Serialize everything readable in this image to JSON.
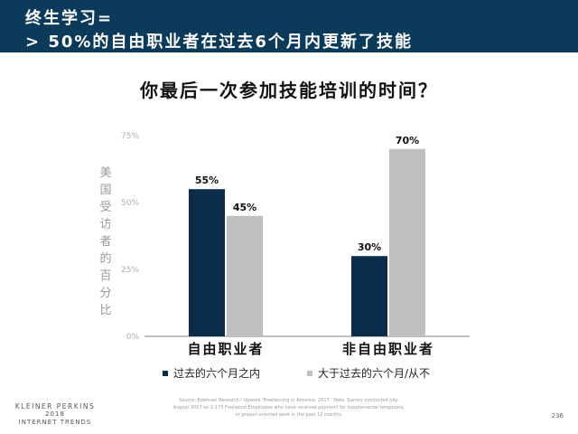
{
  "header": {
    "line1": "终生学习=",
    "line2": ">  50%的自由职业者在过去6个月内更新了技能"
  },
  "chart_data": {
    "type": "bar",
    "title": "你最后一次参加技能培训的时间？",
    "ylabel": "美国受访者的百分比",
    "xlabel": "",
    "categories": [
      "自由职业者",
      "非自由职业者"
    ],
    "series": [
      {
        "name": "过去的六个月之内",
        "values": [
          55,
          30
        ],
        "color": "#0b2d4a"
      },
      {
        "name": "大于过去的六个月/从不",
        "values": [
          45,
          70
        ],
        "color": "#bfbfbf"
      }
    ],
    "value_suffix": "%",
    "ylim": [
      0,
      75
    ],
    "yticks": [
      "0%",
      "25%",
      "50%",
      "75%"
    ],
    "ytick_values": [
      0,
      25,
      50,
      75
    ],
    "grid": false,
    "legend_position": "bottom"
  },
  "footer": {
    "logo_line1": "KLEINER PERKINS",
    "logo_line2": "2018",
    "logo_line3": "INTERNET TRENDS",
    "source": "Source: Edelman Research / Upwork 'Freelancing in America: 2017.' Note: Survey conducted July-August 2017 on 2,173 Freelance Employees who have received payment for supplemental temporary, or project-oriented work in the past 12 months.",
    "page_number": "236"
  }
}
